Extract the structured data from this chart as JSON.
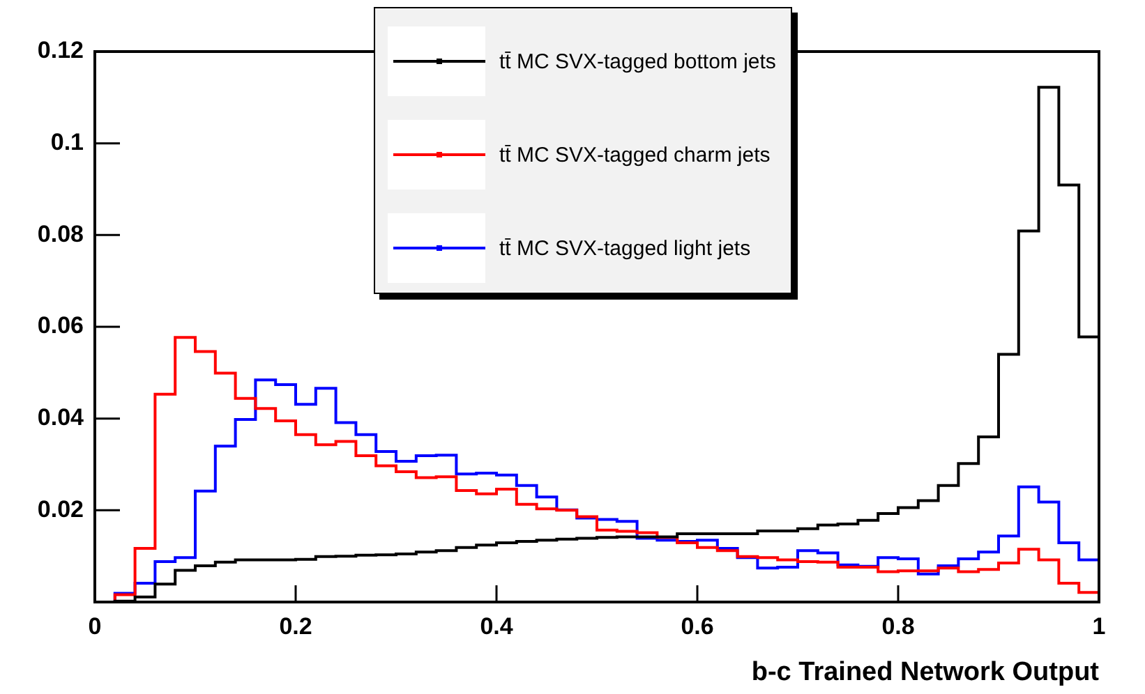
{
  "chart_data": {
    "type": "histogram",
    "xlabel": "b-c Trained Network Output",
    "bins": [
      0.02,
      0.04,
      0.06,
      0.08,
      0.1,
      0.12,
      0.14,
      0.16,
      0.18,
      0.2,
      0.22,
      0.24,
      0.26,
      0.28,
      0.3,
      0.32,
      0.34,
      0.36,
      0.38,
      0.4,
      0.42,
      0.44,
      0.46,
      0.48,
      0.5,
      0.52,
      0.54,
      0.56,
      0.58,
      0.6,
      0.62,
      0.64,
      0.66,
      0.68,
      0.7,
      0.72,
      0.74,
      0.76,
      0.78,
      0.8,
      0.82,
      0.84,
      0.86,
      0.88,
      0.9,
      0.92,
      0.94,
      0.96,
      0.98,
      1.0
    ],
    "series": [
      {
        "name": "tt̄ MC SVX-tagged bottom jets",
        "color": "#000000",
        "values": [
          0.0002,
          0.0011,
          0.0039,
          0.0069,
          0.0079,
          0.0087,
          0.0092,
          0.0092,
          0.0092,
          0.0093,
          0.0099,
          0.01,
          0.0102,
          0.0103,
          0.0105,
          0.0109,
          0.0112,
          0.0119,
          0.0124,
          0.0129,
          0.0132,
          0.0135,
          0.0137,
          0.0139,
          0.0141,
          0.0142,
          0.0142,
          0.0142,
          0.0149,
          0.0149,
          0.0149,
          0.0149,
          0.0155,
          0.0155,
          0.016,
          0.0168,
          0.017,
          0.0178,
          0.0193,
          0.0206,
          0.0221,
          0.0254,
          0.0302,
          0.036,
          0.054,
          0.0809,
          0.1122,
          0.0909,
          0.0578
        ]
      },
      {
        "name": "tt̄ MC SVX-tagged charm jets",
        "color": "#ff0000",
        "values": [
          0.0016,
          0.0117,
          0.0453,
          0.0577,
          0.0546,
          0.0499,
          0.0444,
          0.0422,
          0.0395,
          0.0365,
          0.0343,
          0.035,
          0.0319,
          0.0297,
          0.0284,
          0.0271,
          0.0273,
          0.0243,
          0.0236,
          0.0246,
          0.0213,
          0.0203,
          0.02,
          0.0186,
          0.0157,
          0.0154,
          0.0151,
          0.0141,
          0.0129,
          0.0119,
          0.0112,
          0.0099,
          0.0097,
          0.0092,
          0.0088,
          0.0087,
          0.0076,
          0.0076,
          0.0066,
          0.0068,
          0.0068,
          0.0074,
          0.0066,
          0.0071,
          0.0085,
          0.0115,
          0.0092,
          0.0041,
          0.0021
        ]
      },
      {
        "name": "tt̄ MC SVX-tagged light jets",
        "color": "#0000ff",
        "values": [
          0.0019,
          0.0041,
          0.0088,
          0.0097,
          0.0242,
          0.034,
          0.0398,
          0.0484,
          0.0474,
          0.0431,
          0.0466,
          0.0391,
          0.0365,
          0.0328,
          0.0307,
          0.0319,
          0.032,
          0.0279,
          0.0281,
          0.0277,
          0.0254,
          0.0229,
          0.0201,
          0.0183,
          0.018,
          0.0176,
          0.0139,
          0.0135,
          0.0132,
          0.0135,
          0.0117,
          0.0097,
          0.0074,
          0.0076,
          0.0112,
          0.0107,
          0.0081,
          0.0078,
          0.0097,
          0.0094,
          0.0061,
          0.0079,
          0.0094,
          0.0109,
          0.0144,
          0.0251,
          0.0218,
          0.0129,
          0.0092
        ]
      }
    ],
    "xlim": [
      0,
      1
    ],
    "xticks": [
      0,
      0.2,
      0.4,
      0.6,
      0.8,
      1
    ],
    "ylim": [
      0,
      0.12
    ],
    "yticks": [
      0.02,
      0.04,
      0.06,
      0.08,
      0.1,
      0.12
    ],
    "grid": false,
    "legend": "top right",
    "marker": "none",
    "line_style": "solid"
  }
}
